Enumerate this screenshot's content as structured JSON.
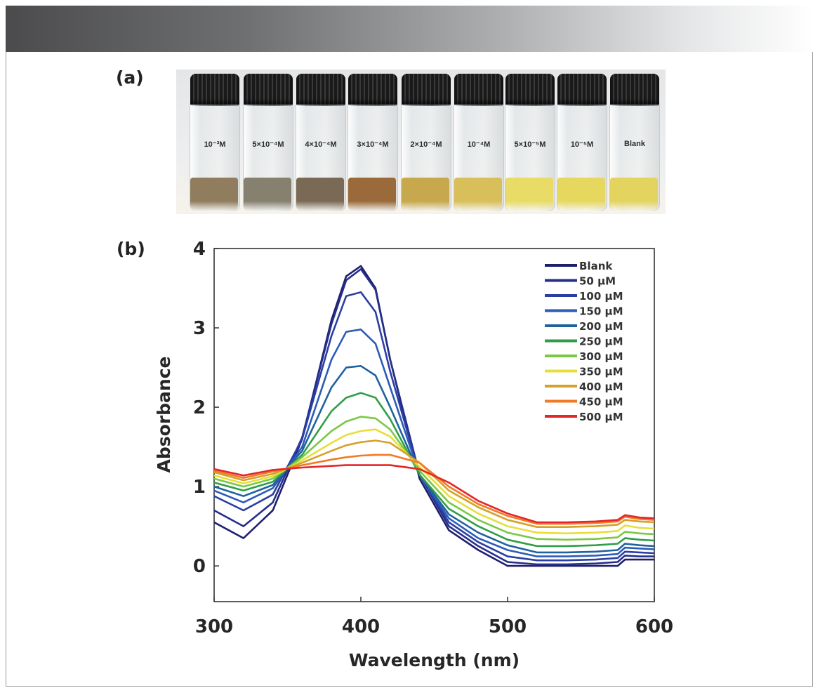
{
  "panels": {
    "a_label": "(a)",
    "b_label": "(b)"
  },
  "vials": [
    {
      "label": "10⁻³M",
      "liquid_color": "#8f7d5e"
    },
    {
      "label": "5×10⁻⁴M",
      "liquid_color": "#86806f"
    },
    {
      "label": "4×10⁻⁴M",
      "liquid_color": "#7a6a55"
    },
    {
      "label": "3×10⁻⁴M",
      "liquid_color": "#9a6a3a"
    },
    {
      "label": "2×10⁻⁴M",
      "liquid_color": "#c8a84c"
    },
    {
      "label": "10⁻⁴M",
      "liquid_color": "#d9bf5a"
    },
    {
      "label": "5×10⁻⁵M",
      "liquid_color": "#e8db66"
    },
    {
      "label": "10⁻⁵M",
      "liquid_color": "#e6d85e"
    },
    {
      "label": "Blank",
      "liquid_color": "#e3d35f"
    }
  ],
  "chart_data": {
    "type": "line",
    "title": "",
    "xlabel": "Wavelength (nm)",
    "ylabel": "Absorbance",
    "xlim": [
      300,
      600
    ],
    "ylim": [
      -0.45,
      4.0
    ],
    "xticks": [
      300,
      400,
      500,
      600
    ],
    "yticks": [
      0,
      1,
      2,
      3,
      4
    ],
    "legend_position": "top-right",
    "x": [
      300,
      320,
      340,
      360,
      380,
      390,
      400,
      410,
      420,
      440,
      460,
      480,
      500,
      520,
      540,
      560,
      575,
      580,
      590,
      600
    ],
    "series": [
      {
        "name": "Blank",
        "color": "#1f1f6e",
        "values": [
          0.55,
          0.35,
          0.7,
          1.6,
          3.1,
          3.65,
          3.78,
          3.5,
          2.6,
          1.1,
          0.45,
          0.2,
          0.0,
          0.0,
          0.0,
          0.0,
          0.0,
          0.08,
          0.08,
          0.08
        ]
      },
      {
        "name": "50 μM",
        "color": "#252f8a",
        "values": [
          0.7,
          0.5,
          0.8,
          1.62,
          3.05,
          3.6,
          3.74,
          3.48,
          2.6,
          1.15,
          0.5,
          0.25,
          0.05,
          0.02,
          0.02,
          0.03,
          0.05,
          0.13,
          0.12,
          0.12
        ]
      },
      {
        "name": "100 μM",
        "color": "#2a3fa3",
        "values": [
          0.88,
          0.7,
          0.9,
          1.6,
          2.9,
          3.4,
          3.45,
          3.2,
          2.45,
          1.15,
          0.55,
          0.3,
          0.12,
          0.07,
          0.07,
          0.08,
          0.1,
          0.18,
          0.17,
          0.16
        ]
      },
      {
        "name": "150 μM",
        "color": "#2d5bb8",
        "values": [
          0.95,
          0.8,
          0.98,
          1.5,
          2.6,
          2.95,
          2.98,
          2.8,
          2.25,
          1.15,
          0.6,
          0.35,
          0.2,
          0.12,
          0.12,
          0.13,
          0.15,
          0.23,
          0.22,
          0.21
        ]
      },
      {
        "name": "200 μM",
        "color": "#1f62a0",
        "values": [
          1.0,
          0.88,
          1.02,
          1.45,
          2.25,
          2.5,
          2.52,
          2.4,
          2.0,
          1.15,
          0.65,
          0.42,
          0.26,
          0.17,
          0.17,
          0.18,
          0.2,
          0.28,
          0.26,
          0.25
        ]
      },
      {
        "name": "250 μM",
        "color": "#2f9e46",
        "values": [
          1.05,
          0.95,
          1.06,
          1.4,
          1.95,
          2.12,
          2.18,
          2.12,
          1.85,
          1.15,
          0.72,
          0.5,
          0.33,
          0.25,
          0.25,
          0.26,
          0.28,
          0.35,
          0.33,
          0.32
        ]
      },
      {
        "name": "300 μM",
        "color": "#7ac943",
        "values": [
          1.1,
          1.0,
          1.1,
          1.37,
          1.7,
          1.82,
          1.88,
          1.86,
          1.72,
          1.2,
          0.8,
          0.58,
          0.42,
          0.34,
          0.33,
          0.34,
          0.36,
          0.43,
          0.41,
          0.4
        ]
      },
      {
        "name": "350 μM",
        "color": "#e6df3a",
        "values": [
          1.14,
          1.04,
          1.13,
          1.33,
          1.55,
          1.65,
          1.7,
          1.72,
          1.63,
          1.25,
          0.88,
          0.66,
          0.5,
          0.42,
          0.41,
          0.42,
          0.44,
          0.51,
          0.48,
          0.47
        ]
      },
      {
        "name": "400 μM",
        "color": "#d4a12a",
        "values": [
          1.18,
          1.08,
          1.16,
          1.3,
          1.45,
          1.52,
          1.56,
          1.58,
          1.55,
          1.3,
          0.95,
          0.74,
          0.58,
          0.49,
          0.49,
          0.5,
          0.52,
          0.58,
          0.56,
          0.55
        ]
      },
      {
        "name": "450 μM",
        "color": "#f07a26",
        "values": [
          1.2,
          1.11,
          1.19,
          1.27,
          1.34,
          1.37,
          1.39,
          1.4,
          1.4,
          1.3,
          1.0,
          0.78,
          0.63,
          0.53,
          0.53,
          0.54,
          0.56,
          0.62,
          0.59,
          0.58
        ]
      },
      {
        "name": "500 μM",
        "color": "#e3262a",
        "values": [
          1.22,
          1.14,
          1.21,
          1.24,
          1.26,
          1.27,
          1.27,
          1.27,
          1.27,
          1.22,
          1.05,
          0.82,
          0.66,
          0.55,
          0.55,
          0.56,
          0.58,
          0.64,
          0.61,
          0.6
        ]
      }
    ]
  }
}
